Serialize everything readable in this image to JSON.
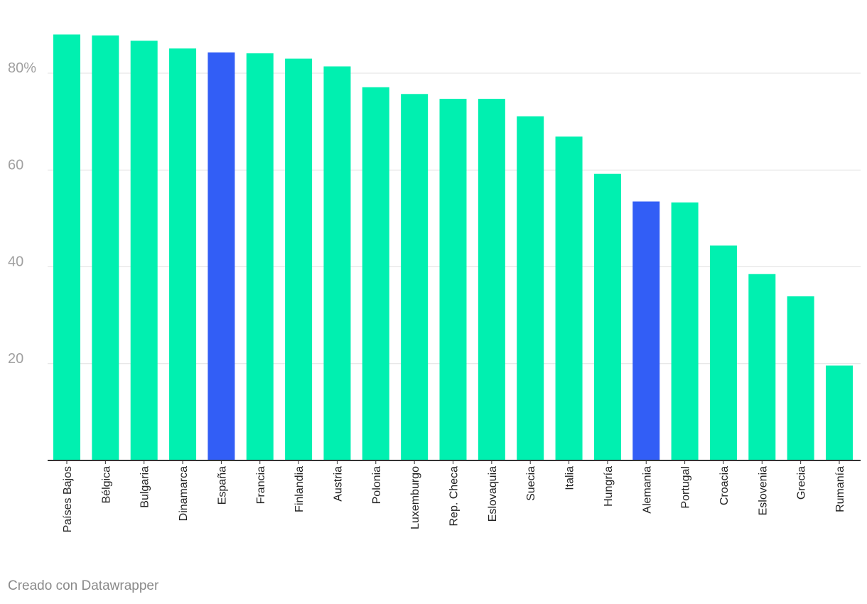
{
  "chart_data": {
    "type": "bar",
    "categories": [
      "Países Bajos",
      "Bélgica",
      "Bulgaria",
      "Dinamarca",
      "España",
      "Francia",
      "Finlandia",
      "Austria",
      "Polonia",
      "Luxemburgo",
      "Rep. Checa",
      "Eslovaquia",
      "Suecia",
      "Italia",
      "Hungría",
      "Alemania",
      "Portugal",
      "Croacia",
      "Eslovenia",
      "Grecia",
      "Rumanía"
    ],
    "values": [
      88.0,
      87.8,
      86.7,
      85.1,
      84.3,
      84.1,
      83.0,
      81.4,
      77.1,
      75.7,
      74.7,
      74.7,
      71.1,
      66.9,
      59.2,
      53.5,
      53.3,
      44.4,
      38.5,
      33.9,
      19.6
    ],
    "highlighted": [
      "España",
      "Alemania"
    ],
    "ylim": [
      0,
      90
    ],
    "yticks": [
      {
        "value": 20,
        "label": "20"
      },
      {
        "value": 40,
        "label": "40"
      },
      {
        "value": 60,
        "label": "60"
      },
      {
        "value": 80,
        "label": "80%"
      }
    ],
    "grid": true,
    "colors": {
      "bar": "#00f0b0",
      "highlight": "#325ef6"
    }
  },
  "credit": "Creado con Datawrapper"
}
